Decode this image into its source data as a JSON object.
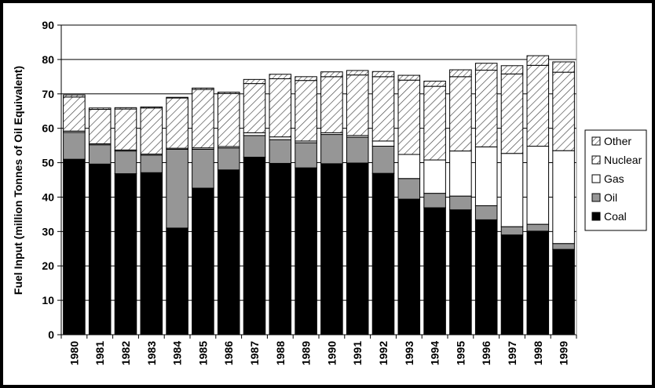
{
  "chart_data": {
    "type": "bar",
    "stacked": true,
    "title": "",
    "xlabel": "",
    "ylabel": "Fuel Input (million Tonnes of Oil Equivalent)",
    "ylim": [
      0,
      90
    ],
    "yticks": [
      0,
      10,
      20,
      30,
      40,
      50,
      60,
      70,
      80,
      90
    ],
    "grid": true,
    "legend_position": "right",
    "categories": [
      "1980",
      "1981",
      "1982",
      "1983",
      "1984",
      "1985",
      "1986",
      "1987",
      "1988",
      "1989",
      "1990",
      "1991",
      "1992",
      "1993",
      "1994",
      "1995",
      "1996",
      "1997",
      "1998",
      "1999"
    ],
    "series": [
      {
        "name": "Coal",
        "fill": "#000000",
        "values": [
          51.0,
          49.6,
          46.8,
          47.1,
          31.0,
          42.6,
          47.9,
          51.6,
          49.8,
          48.5,
          49.7,
          49.9,
          46.9,
          39.4,
          36.9,
          36.3,
          33.4,
          29.0,
          30.1,
          24.8
        ]
      },
      {
        "name": "Oil",
        "fill": "#969696",
        "values": [
          7.8,
          5.6,
          6.6,
          5.1,
          22.9,
          11.3,
          6.4,
          6.3,
          6.9,
          7.3,
          8.5,
          7.5,
          7.9,
          6.0,
          4.2,
          4.0,
          4.1,
          2.4,
          2.0,
          1.7
        ]
      },
      {
        "name": "Gas",
        "fill": "#ffffff",
        "values": [
          0.4,
          0.3,
          0.3,
          0.3,
          0.3,
          0.4,
          0.4,
          0.8,
          0.8,
          0.5,
          0.5,
          0.5,
          1.5,
          7.0,
          9.7,
          13.1,
          17.1,
          21.3,
          22.7,
          27.0
        ]
      },
      {
        "name": "Nuclear",
        "fill": "hatch",
        "values": [
          9.9,
          10.0,
          11.9,
          13.4,
          14.6,
          17.0,
          15.4,
          14.3,
          16.9,
          17.6,
          16.3,
          17.6,
          18.7,
          21.6,
          21.4,
          21.6,
          22.3,
          23.1,
          23.5,
          22.8
        ]
      },
      {
        "name": "Other",
        "fill": "hatch-light",
        "values": [
          0.6,
          0.4,
          0.4,
          0.3,
          0.2,
          0.4,
          0.4,
          1.2,
          1.3,
          1.1,
          1.4,
          1.3,
          1.5,
          1.4,
          1.5,
          2.0,
          2.0,
          2.4,
          2.8,
          3.0
        ]
      }
    ]
  }
}
